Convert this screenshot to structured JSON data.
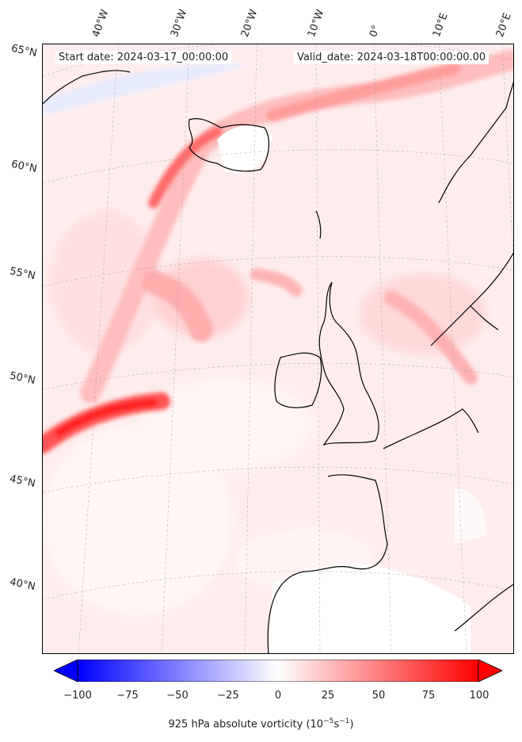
{
  "header": {
    "start_date": "Start date: 2024-03-17_00:00:00",
    "valid_date": "Valid_date: 2024-03-18T00:00:00.00"
  },
  "lon_labels": [
    "40°W",
    "30°W",
    "20°W",
    "10°W",
    "0°",
    "10°E",
    "20°E"
  ],
  "lat_labels": [
    "65°N",
    "60°N",
    "55°N",
    "50°N",
    "45°N",
    "40°N"
  ],
  "colorbar": {
    "ticks": [
      "−100",
      "−75",
      "−50",
      "−25",
      "0",
      "25",
      "50",
      "75",
      "100"
    ],
    "label": "925 hPa absolute vorticity (10",
    "label_exp1": "−5",
    "label_mid": "s",
    "label_exp2": "−1",
    "label_end": ")",
    "min": -100,
    "max": 100,
    "color_low": "#0000ff",
    "color_mid": "#ffffff",
    "color_high": "#ff0000"
  },
  "colors": {
    "coast": "#000000",
    "land_white": "#ffffff",
    "background_field": "#fff0f0"
  }
}
